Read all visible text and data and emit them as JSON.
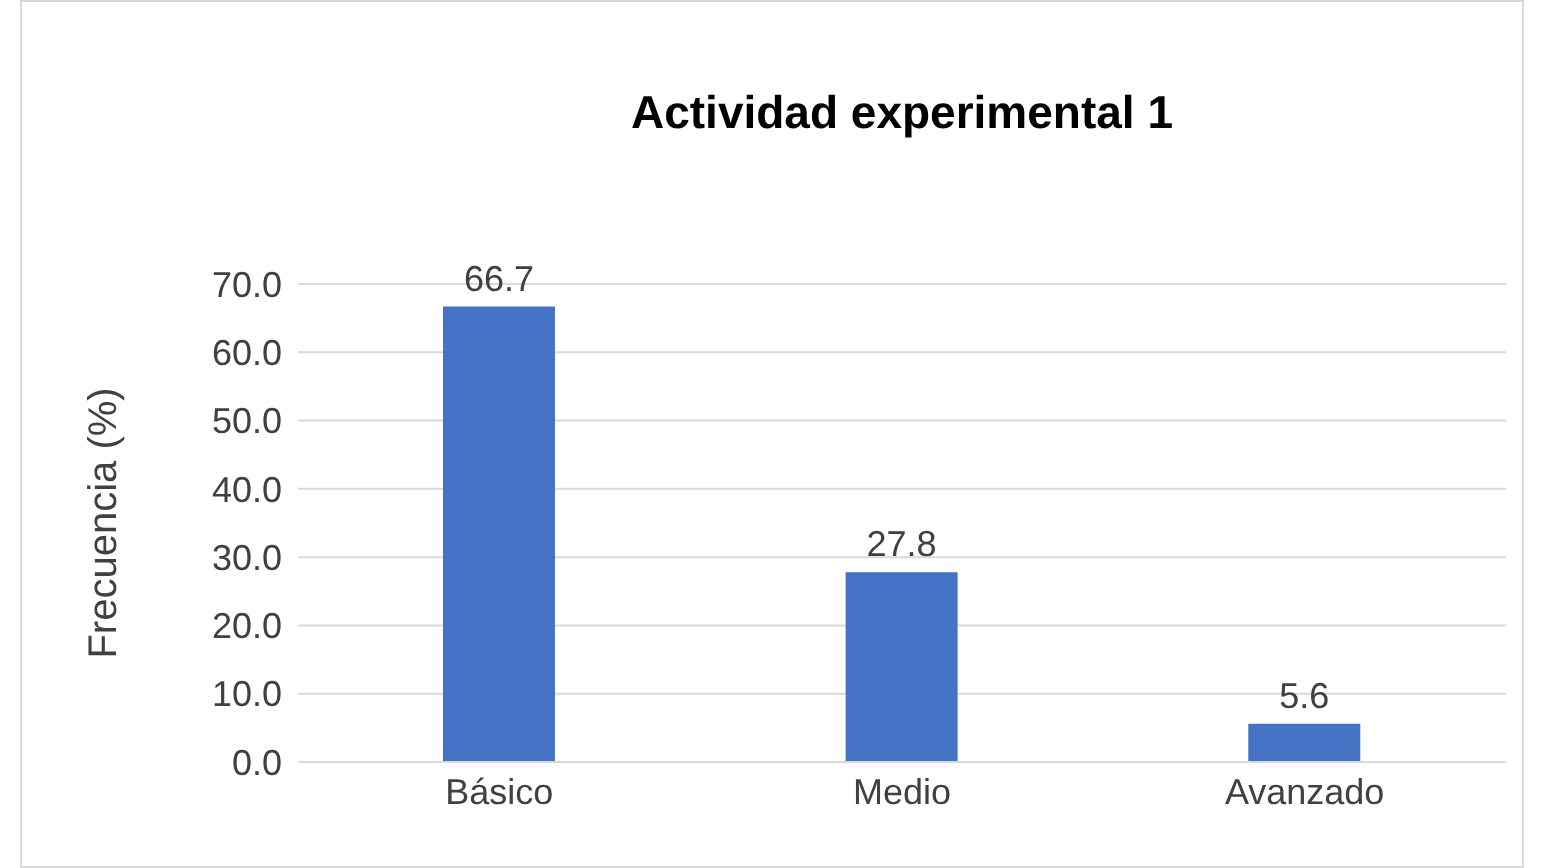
{
  "chart_data": {
    "type": "bar",
    "title": "Actividad experimental 1",
    "ylabel": "Frecuencia (%)",
    "categories": [
      "Básico",
      "Medio",
      "Avanzado"
    ],
    "values": [
      66.7,
      27.8,
      5.6
    ],
    "color": "#4472c4",
    "ylim": [
      0,
      70
    ],
    "yticks": [
      {
        "value": 0,
        "label": "0.0"
      },
      {
        "value": 10,
        "label": "10.0"
      },
      {
        "value": 20,
        "label": "20.0"
      },
      {
        "value": 30,
        "label": "30.0"
      },
      {
        "value": 40,
        "label": "40.0"
      },
      {
        "value": 50,
        "label": "50.0"
      },
      {
        "value": 60,
        "label": "60.0"
      },
      {
        "value": 70,
        "label": "70.0"
      }
    ],
    "grid": "y",
    "data_labels": true
  }
}
